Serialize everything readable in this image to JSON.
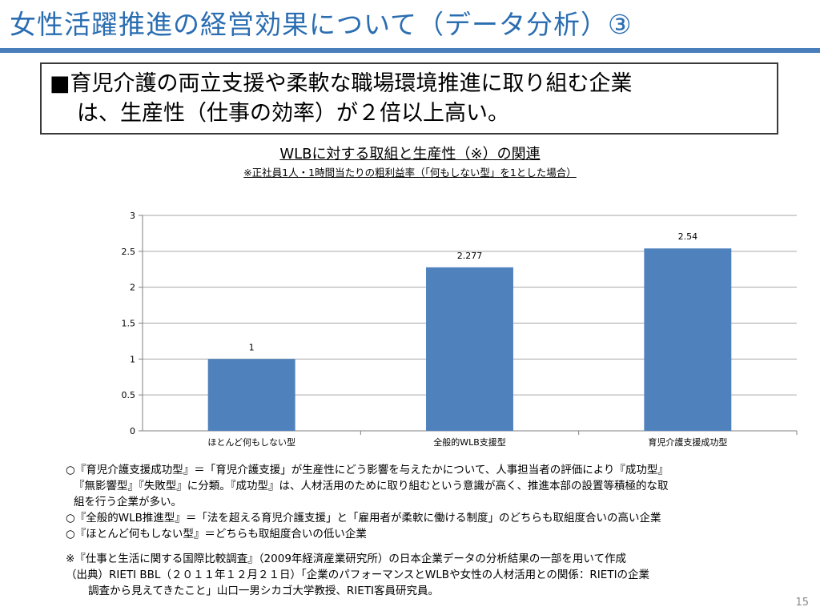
{
  "slide": {
    "title": "女性活躍推進の経営効果について（データ分析）③",
    "page_number": "15"
  },
  "callout": {
    "line1": "■育児介護の両立支援や柔軟な職場環境推進に取り組む企業",
    "line2": "は、生産性（仕事の効率）が２倍以上高い。"
  },
  "chart_data": {
    "type": "bar",
    "title": "WLBに対する取組と生産性（※）の関連",
    "subtitle": "※正社員1人・1時間当たりの粗利益率（「何もしない型」を1とした場合）",
    "categories": [
      "ほとんど何もしない型",
      "全般的WLB支援型",
      "育児介護支援成功型"
    ],
    "values": [
      1,
      2.277,
      2.54
    ],
    "data_labels": [
      "1",
      "2.277",
      "2.54"
    ],
    "yticks": [
      "0",
      "0.5",
      "1",
      "1.5",
      "2",
      "2.5",
      "3"
    ],
    "ylim": [
      0,
      3
    ],
    "grid": true,
    "bar_color": "#4f81bd"
  },
  "notes": {
    "line1": "○『育児介護支援成功型』＝「育児介護支援」が生産性にどう影響を与えたかについて、人事担当者の評価により『成功型』",
    "line2": "『無影響型』『失敗型』に分類。『成功型』は、人材活用のために取り組むという意識が高く、推進本部の設置等積極的な取",
    "line3": "組を行う企業が多い。",
    "line4": "○『全般的WLB推進型』＝「法を超える育児介護支援」と「雇用者が柔軟に働ける制度」のどちらも取組度合いの高い企業",
    "line5": "○『ほとんど何もしない型』＝どちらも取組度合いの低い企業"
  },
  "sources": {
    "line1": "※『仕事と生活に関する国際比較調査』（2009年経済産業研究所）の日本企業データの分析結果の一部を用いて作成",
    "line2": "（出典）RIETI BBL（２０１１年１２月２１日）「企業のパフォーマンスとWLBや女性の人材活用との関係：RIETIの企業",
    "line3": "調査から見えてきたこと」山口一男シカゴ大学教授、RIETI客員研究員。"
  }
}
